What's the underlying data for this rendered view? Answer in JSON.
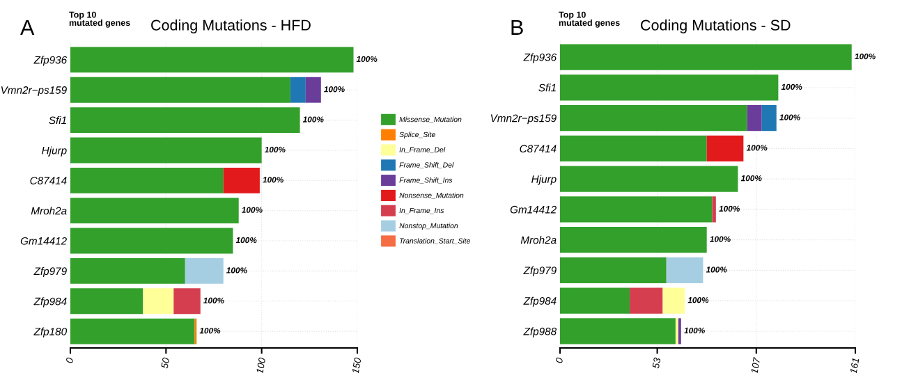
{
  "chart_data": [
    {
      "type": "bar",
      "orientation": "horizontal",
      "stacked": true,
      "title": "Coding Mutations - HFD",
      "subtitle": "Top 10\nmutated genes",
      "categories": [
        "Zfp936",
        "Vmn2r−ps159",
        "Sfi1",
        "Hjurp",
        "C87414",
        "Mroh2a",
        "Gm14412",
        "Zfp979",
        "Zfp984",
        "Zfp180"
      ],
      "series": [
        {
          "name": "Missense_Mutation",
          "color": "#33a02c",
          "values": [
            148,
            115,
            120,
            100,
            80,
            88,
            85,
            60,
            38,
            65
          ]
        },
        {
          "name": "Splice_Site",
          "color": "#ff7f00",
          "values": [
            null,
            null,
            null,
            null,
            null,
            null,
            null,
            null,
            null,
            1
          ]
        },
        {
          "name": "In_Frame_Del",
          "color": "#ffff99",
          "values": [
            null,
            null,
            null,
            null,
            null,
            null,
            null,
            null,
            16,
            null
          ]
        },
        {
          "name": "Frame_Shift_Del",
          "color": "#1f78b4",
          "values": [
            null,
            8,
            null,
            null,
            null,
            null,
            null,
            null,
            null,
            null
          ]
        },
        {
          "name": "Frame_Shift_Ins",
          "color": "#6a3d9a",
          "values": [
            null,
            8,
            null,
            null,
            null,
            null,
            null,
            null,
            null,
            null
          ]
        },
        {
          "name": "Nonsense_Mutation",
          "color": "#e31a1c",
          "values": [
            null,
            null,
            null,
            null,
            19,
            null,
            null,
            null,
            null,
            null
          ]
        },
        {
          "name": "In_Frame_Ins",
          "color": "#d53e4f",
          "values": [
            null,
            null,
            null,
            null,
            null,
            null,
            null,
            null,
            14,
            null
          ]
        },
        {
          "name": "Nonstop_Mutation",
          "color": "#a6cee3",
          "values": [
            null,
            null,
            null,
            null,
            null,
            null,
            null,
            20,
            null,
            null
          ]
        },
        {
          "name": "Translation_Start_Site",
          "color": "#f46d43",
          "values": [
            null,
            null,
            null,
            null,
            null,
            null,
            null,
            null,
            null,
            null
          ]
        }
      ],
      "annotations": [
        "A",
        {
          "text": "100%",
          "x": 148,
          "y": "Zfp936"
        },
        {
          "text": "100%",
          "x": 131,
          "y": "Vmn2r−ps159"
        },
        {
          "text": "100%",
          "x": 120,
          "y": "Sfi1"
        },
        {
          "text": "100%",
          "x": 100,
          "y": "Hjurp"
        },
        {
          "text": "100%",
          "x": 99,
          "y": "C87414"
        },
        {
          "text": "100%",
          "x": 88,
          "y": "Mroh2a"
        },
        {
          "text": "100%",
          "x": 85,
          "y": "Gm14412"
        },
        {
          "text": "100%",
          "x": 80,
          "y": "Zfp979"
        },
        {
          "text": "100%",
          "x": 68,
          "y": "Zfp984"
        },
        {
          "text": "100%",
          "x": 66,
          "y": "Zfp180"
        }
      ],
      "xlim": [
        0,
        150
      ],
      "xticks": [
        0,
        50,
        100,
        150
      ],
      "grid": true,
      "legend": "right"
    },
    {
      "type": "bar",
      "orientation": "horizontal",
      "stacked": true,
      "title": "Coding Mutations - SD",
      "subtitle": "Top 10\nmutated genes",
      "categories": [
        "Zfp936",
        "Sfi1",
        "Vmn2r−ps159",
        "C87414",
        "Hjurp",
        "Gm14412",
        "Mroh2a",
        "Zfp979",
        "Zfp984",
        "Zfp988"
      ],
      "series": [
        {
          "color": "#33a02c",
          "values": [
            159,
            119,
            102,
            80,
            97,
            83,
            80,
            58,
            38,
            63
          ]
        },
        {
          "color": "#d53e4f",
          "values": [
            null,
            null,
            null,
            null,
            null,
            2,
            null,
            null,
            18,
            null
          ]
        },
        {
          "color": "#ffff99",
          "values": [
            null,
            null,
            null,
            null,
            null,
            null,
            null,
            null,
            12,
            1.5
          ]
        },
        {
          "color": "#6a3d9a",
          "values": [
            null,
            null,
            8,
            null,
            null,
            null,
            null,
            null,
            null,
            1.5
          ]
        },
        {
          "color": "#1f78b4",
          "values": [
            null,
            null,
            8,
            null,
            null,
            null,
            null,
            null,
            null,
            null
          ]
        },
        {
          "color": "#e31a1c",
          "values": [
            null,
            null,
            null,
            20,
            null,
            null,
            null,
            null,
            null,
            null
          ]
        },
        {
          "color": "#a6cee3",
          "values": [
            null,
            null,
            null,
            null,
            null,
            null,
            null,
            20,
            null,
            null
          ]
        }
      ],
      "annotations": [
        "B",
        {
          "text": "100%",
          "x": 159,
          "y": "Zfp936"
        },
        {
          "text": "100%",
          "x": 119,
          "y": "Sfi1"
        },
        {
          "text": "100%",
          "x": 118,
          "y": "Vmn2r−ps159"
        },
        {
          "text": "100%",
          "x": 100,
          "y": "C87414"
        },
        {
          "text": "100%",
          "x": 97,
          "y": "Hjurp"
        },
        {
          "text": "100%",
          "x": 85,
          "y": "Gm14412"
        },
        {
          "text": "100%",
          "x": 80,
          "y": "Mroh2a"
        },
        {
          "text": "100%",
          "x": 78,
          "y": "Zfp979"
        },
        {
          "text": "100%",
          "x": 68,
          "y": "Zfp984"
        },
        {
          "text": "100%",
          "x": 66,
          "y": "Zfp988"
        }
      ],
      "xlim": [
        0,
        161
      ],
      "xticks": [
        0,
        53,
        107,
        161
      ],
      "grid": true
    }
  ]
}
